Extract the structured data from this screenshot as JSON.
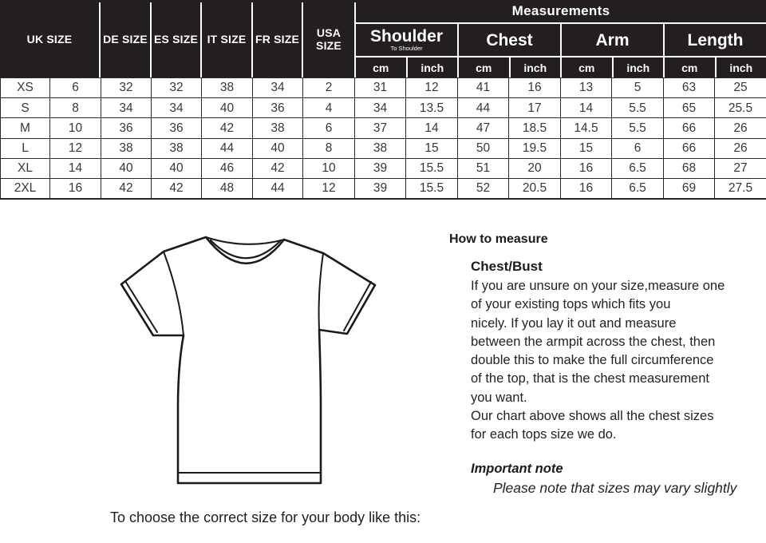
{
  "colors": {
    "header_bg": "#231f20",
    "header_text": "#ffffff",
    "grid_border": "#2a2a2c",
    "body_text": "#232325"
  },
  "size_table": {
    "left_headers": [
      "UK SIZE",
      "DE SIZE",
      "ES SIZE",
      "IT SIZE",
      "FR SIZE",
      "USA SIZE"
    ],
    "measurements_title": "Measurements",
    "groups": [
      {
        "label": "Shoulder",
        "sub": "To Shoulder"
      },
      {
        "label": "Chest",
        "sub": ""
      },
      {
        "label": "Arm",
        "sub": ""
      },
      {
        "label": "Length",
        "sub": ""
      }
    ],
    "units": [
      "cm",
      "inch",
      "cm",
      "inch",
      "cm",
      "inch",
      "cm",
      "inch"
    ],
    "rows": [
      [
        "XS",
        "6",
        "32",
        "32",
        "38",
        "34",
        "2",
        "31",
        "12",
        "41",
        "16",
        "13",
        "5",
        "63",
        "25"
      ],
      [
        "S",
        "8",
        "34",
        "34",
        "40",
        "36",
        "4",
        "34",
        "13.5",
        "44",
        "17",
        "14",
        "5.5",
        "65",
        "25.5"
      ],
      [
        "M",
        "10",
        "36",
        "36",
        "42",
        "38",
        "6",
        "37",
        "14",
        "47",
        "18.5",
        "14.5",
        "5.5",
        "66",
        "26"
      ],
      [
        "L",
        "12",
        "38",
        "38",
        "44",
        "40",
        "8",
        "38",
        "15",
        "50",
        "19.5",
        "15",
        "6",
        "66",
        "26"
      ],
      [
        "XL",
        "14",
        "40",
        "40",
        "46",
        "42",
        "10",
        "39",
        "15.5",
        "51",
        "20",
        "16",
        "6.5",
        "68",
        "27"
      ],
      [
        "2XL",
        "16",
        "42",
        "42",
        "48",
        "44",
        "12",
        "39",
        "15.5",
        "52",
        "20.5",
        "16",
        "6.5",
        "69",
        "27.5"
      ]
    ]
  },
  "guide": {
    "title": "How to measure",
    "section_heading": "Chest/Bust",
    "body": "If you are unsure on your size,measure one\nof your existing tops which fits you\nnicely. If you lay it out and measure\nbetween the armpit across the chest, then\ndouble this to make the full circumference\nof the top, that is the chest measurement\nyou want.\nOur chart above shows all the chest sizes\nfor each tops size we do.",
    "important_title": "Important note",
    "important_note": "Please note that sizes may vary slightly"
  },
  "footer": {
    "caption": "To choose the correct size for your body like this:"
  }
}
